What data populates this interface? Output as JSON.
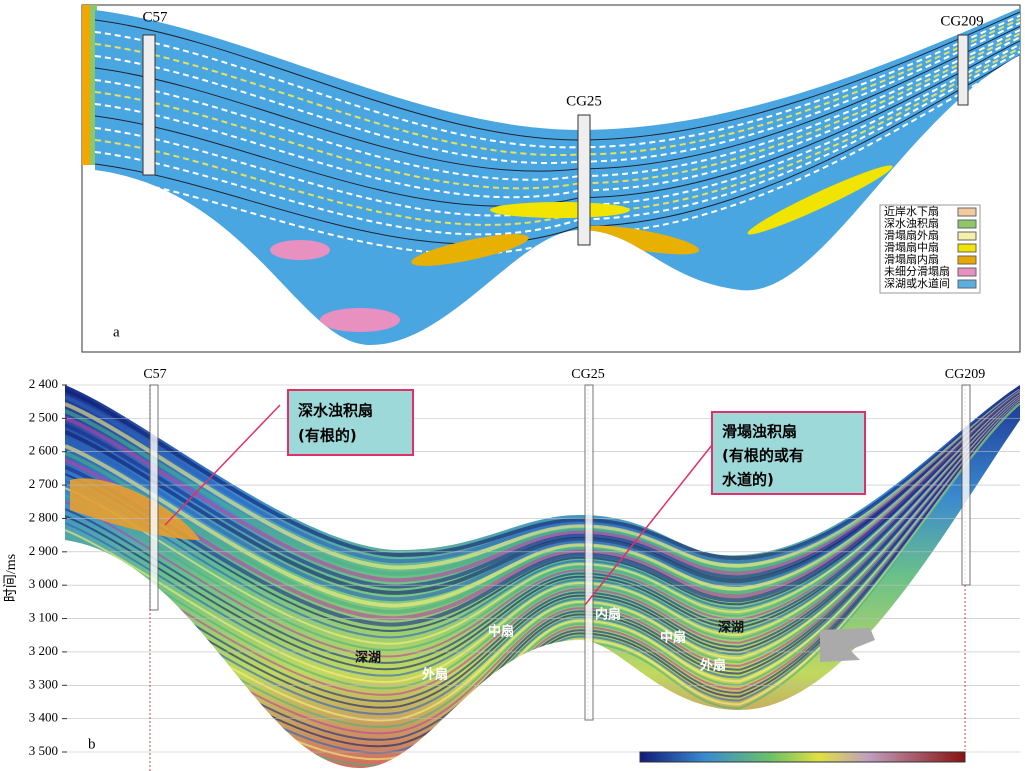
{
  "panel_a": {
    "label": "a",
    "wells": [
      "C57",
      "CG25",
      "CG209"
    ],
    "legend": [
      {
        "name": "近岸水下扇",
        "color": "#f3c9a0"
      },
      {
        "name": "深水浊积扇",
        "color": "#8cc86a"
      },
      {
        "name": "滑塌扇外扇",
        "color": "#f4f0a8"
      },
      {
        "name": "滑塌扇中扇",
        "color": "#f0e400"
      },
      {
        "name": "滑塌扇内扇",
        "color": "#e8a800"
      },
      {
        "name": "未细分滑塌扇",
        "color": "#e890c0"
      },
      {
        "name": "深湖或水道间",
        "color": "#5aaee0"
      }
    ]
  },
  "panel_b": {
    "label": "b",
    "wells": [
      "C57",
      "CG25",
      "CG209"
    ],
    "y_axis_title": "时间/ms",
    "y_ticks": [
      "2 400",
      "2 500",
      "2 600",
      "2 700",
      "2 800",
      "2 900",
      "3 000",
      "3 100",
      "3 200",
      "3 300",
      "3 400",
      "3 500"
    ],
    "callouts": [
      [
        "深水浊积扇",
        "(有根的)"
      ],
      [
        "滑塌浊积扇",
        "(有根的或有",
        "水道的)"
      ]
    ],
    "facies_labels": [
      "深湖",
      "外扇",
      "中扇",
      "内扇",
      "中扇",
      "深湖",
      "外扇"
    ]
  }
}
